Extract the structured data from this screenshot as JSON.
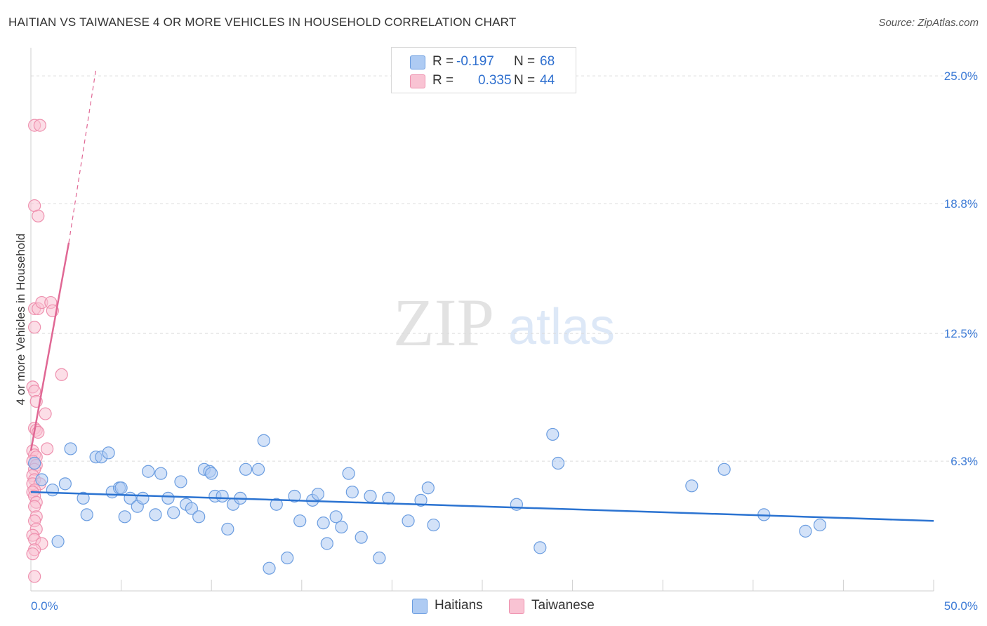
{
  "header": {
    "title": "HAITIAN VS TAIWANESE 4 OR MORE VEHICLES IN HOUSEHOLD CORRELATION CHART",
    "source": "Source: ZipAtlas.com"
  },
  "watermark": {
    "zip": "ZIP",
    "atlas": "atlas"
  },
  "legend": {
    "r_label": "R =",
    "n_label": "N =",
    "rows": [
      {
        "name": "Haitians",
        "r": "-0.197",
        "n": "68"
      },
      {
        "name": "Taiwanese",
        "r": "0.335",
        "n": "44"
      }
    ]
  },
  "colors": {
    "haitians_fill": "#aecbf3",
    "haitians_stroke": "#6b9de0",
    "haitians_line": "#2b73d1",
    "taiwanese_fill": "#f9c3d3",
    "taiwanese_stroke": "#ee90ae",
    "taiwanese_line": "#e06794",
    "tick_label": "#3d7bd6"
  },
  "chart_data": {
    "type": "scatter",
    "title": "HAITIAN VS TAIWANESE 4 OR MORE VEHICLES IN HOUSEHOLD CORRELATION CHART",
    "xlabel": "",
    "ylabel": "4 or more Vehicles in Household",
    "xlim": [
      0,
      50
    ],
    "ylim": [
      0,
      26.3
    ],
    "x_tick_labels": [
      "0.0%",
      "50.0%"
    ],
    "y_ticks": [
      {
        "value": 6.3,
        "label": "6.3%"
      },
      {
        "value": 12.5,
        "label": "12.5%"
      },
      {
        "value": 18.8,
        "label": "18.8%"
      },
      {
        "value": 25.0,
        "label": "25.0%"
      }
    ],
    "grid": "horizontal dashed",
    "legend_position": "top-center",
    "series": [
      {
        "name": "Haitians",
        "r": -0.197,
        "n": 68,
        "trend": {
          "x": [
            0,
            50
          ],
          "y": [
            4.8,
            3.4
          ]
        },
        "points": [
          [
            0.2,
            6.2
          ],
          [
            0.6,
            5.4
          ],
          [
            1.2,
            4.9
          ],
          [
            1.5,
            2.4
          ],
          [
            1.9,
            5.2
          ],
          [
            2.2,
            6.9
          ],
          [
            2.9,
            4.5
          ],
          [
            3.1,
            3.7
          ],
          [
            3.6,
            6.5
          ],
          [
            3.9,
            6.5
          ],
          [
            4.3,
            6.7
          ],
          [
            4.5,
            4.8
          ],
          [
            4.9,
            5.0
          ],
          [
            5.2,
            3.6
          ],
          [
            5.5,
            4.5
          ],
          [
            5.9,
            4.1
          ],
          [
            6.2,
            4.5
          ],
          [
            6.5,
            5.8
          ],
          [
            6.9,
            3.7
          ],
          [
            7.2,
            5.7
          ],
          [
            7.6,
            4.5
          ],
          [
            7.9,
            3.8
          ],
          [
            8.3,
            5.3
          ],
          [
            8.6,
            4.2
          ],
          [
            8.9,
            4.0
          ],
          [
            9.3,
            3.6
          ],
          [
            9.6,
            5.9
          ],
          [
            9.9,
            5.8
          ],
          [
            10.2,
            4.6
          ],
          [
            10.6,
            4.6
          ],
          [
            10.9,
            3.0
          ],
          [
            11.2,
            4.2
          ],
          [
            11.6,
            4.5
          ],
          [
            11.9,
            5.9
          ],
          [
            12.6,
            5.9
          ],
          [
            12.9,
            7.3
          ],
          [
            13.6,
            4.2
          ],
          [
            14.2,
            1.6
          ],
          [
            14.6,
            4.6
          ],
          [
            14.9,
            3.4
          ],
          [
            15.6,
            4.4
          ],
          [
            15.9,
            4.7
          ],
          [
            16.2,
            3.3
          ],
          [
            16.4,
            2.3
          ],
          [
            16.9,
            3.6
          ],
          [
            17.2,
            3.1
          ],
          [
            17.6,
            5.7
          ],
          [
            17.8,
            4.8
          ],
          [
            18.3,
            2.6
          ],
          [
            18.8,
            4.6
          ],
          [
            19.3,
            1.6
          ],
          [
            19.8,
            4.5
          ],
          [
            20.9,
            3.4
          ],
          [
            21.6,
            4.4
          ],
          [
            22.0,
            5.0
          ],
          [
            22.3,
            3.2
          ],
          [
            26.9,
            4.2
          ],
          [
            28.2,
            2.1
          ],
          [
            28.9,
            7.6
          ],
          [
            29.2,
            6.2
          ],
          [
            36.6,
            5.1
          ],
          [
            38.4,
            5.9
          ],
          [
            40.6,
            3.7
          ],
          [
            42.9,
            2.9
          ],
          [
            43.7,
            3.2
          ],
          [
            5.0,
            5.0
          ],
          [
            13.2,
            1.1
          ],
          [
            10.0,
            5.7
          ]
        ]
      },
      {
        "name": "Taiwanese",
        "r": 0.335,
        "n": 44,
        "trend": {
          "x": [
            0,
            2.1
          ],
          "y": [
            6.8,
            16.9
          ]
        },
        "trend_extended": {
          "x": [
            2.1,
            3.6
          ],
          "y": [
            16.9,
            25.3
          ]
        },
        "points": [
          [
            0.2,
            22.6
          ],
          [
            0.5,
            22.6
          ],
          [
            0.2,
            18.7
          ],
          [
            0.4,
            18.2
          ],
          [
            0.2,
            13.7
          ],
          [
            0.4,
            13.7
          ],
          [
            0.6,
            14.0
          ],
          [
            1.1,
            14.0
          ],
          [
            1.2,
            13.6
          ],
          [
            0.2,
            12.8
          ],
          [
            1.7,
            10.5
          ],
          [
            0.1,
            9.9
          ],
          [
            0.2,
            9.7
          ],
          [
            0.3,
            9.2
          ],
          [
            0.8,
            8.6
          ],
          [
            0.2,
            7.9
          ],
          [
            0.3,
            7.8
          ],
          [
            0.4,
            7.7
          ],
          [
            0.9,
            6.9
          ],
          [
            0.1,
            6.8
          ],
          [
            0.2,
            6.6
          ],
          [
            0.3,
            6.5
          ],
          [
            0.1,
            6.3
          ],
          [
            0.2,
            6.2
          ],
          [
            0.3,
            6.1
          ],
          [
            0.2,
            5.9
          ],
          [
            0.1,
            5.6
          ],
          [
            0.2,
            5.4
          ],
          [
            0.1,
            5.2
          ],
          [
            0.5,
            5.2
          ],
          [
            0.2,
            4.9
          ],
          [
            0.1,
            4.8
          ],
          [
            0.2,
            4.6
          ],
          [
            0.3,
            4.3
          ],
          [
            0.2,
            4.1
          ],
          [
            0.3,
            3.6
          ],
          [
            0.2,
            3.4
          ],
          [
            0.3,
            3.0
          ],
          [
            0.1,
            2.7
          ],
          [
            0.2,
            2.5
          ],
          [
            0.6,
            2.3
          ],
          [
            0.2,
            2.0
          ],
          [
            0.1,
            1.8
          ],
          [
            0.2,
            0.7
          ]
        ]
      }
    ]
  }
}
